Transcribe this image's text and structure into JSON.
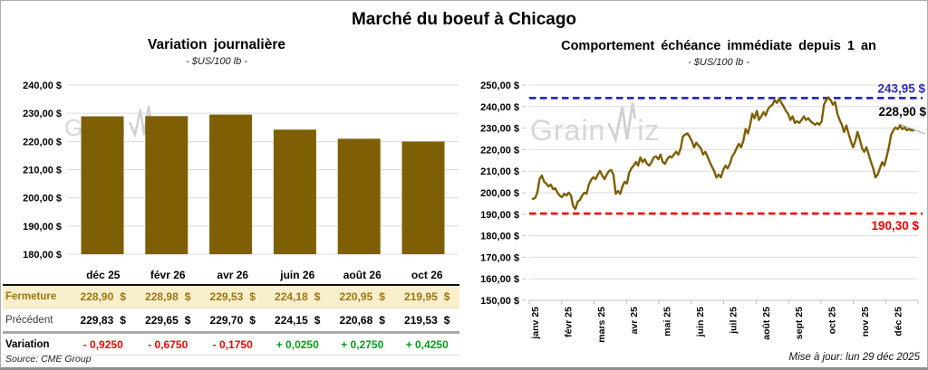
{
  "header": {
    "title": "Marché du boeuf à Chicago"
  },
  "watermark": {
    "full": "GrainWiz",
    "prefix": "Grain",
    "suffix": "iz"
  },
  "colors": {
    "gold": "#7E5F03",
    "grid": "#DCDCDC",
    "close_row_bg": "#F9EFCD",
    "close_row_text": "#9C7614",
    "negative": "#F00505",
    "positive": "#00A01E",
    "resistance_blue": "#2B2BB5",
    "support_red": "#F00000"
  },
  "chart_data": [
    {
      "type": "bar",
      "title": "Variation journalière",
      "subtitle": "- $US/100 lb -",
      "categories": [
        "déc 25",
        "févr 26",
        "avr 26",
        "juin 26",
        "août 26",
        "oct 26"
      ],
      "values": [
        228.9,
        228.98,
        229.53,
        224.18,
        220.95,
        219.95
      ],
      "ylim": [
        180,
        240
      ],
      "ytick_step": 10,
      "ytick_format": "###,00 $",
      "grid": true,
      "legend": "none",
      "bar_color": "#7E5F03",
      "grid_color": "#DCDCDC"
    },
    {
      "type": "line",
      "title": "Comportement échéance immédiate depuis 1 an",
      "subtitle": "- $US/100 lb -",
      "x_tick_labels": [
        "janv 25",
        "févr 25",
        "mars 25",
        "avr 25",
        "mai 25",
        "juin 25",
        "juil 25",
        "août 25",
        "sept 25",
        "oct 25",
        "nov 25",
        "déc 25"
      ],
      "ylim": [
        150,
        250
      ],
      "ytick_step": 10,
      "grid": true,
      "legend": "none",
      "line_color": "#7E5F03",
      "ref_lines": [
        {
          "value": 243.95,
          "label": "243,95 $",
          "color": "#2B2BB5",
          "style": "dashed",
          "position": "above-right"
        },
        {
          "value": 190.3,
          "label": "190,30 $",
          "color": "#F00000",
          "style": "dashed",
          "position": "below-right"
        }
      ],
      "end_label": {
        "text": "228,90 $",
        "color": "#000000"
      },
      "values": [
        197.1,
        197.5,
        200.0,
        206.3,
        208.0,
        205.1,
        204.2,
        202.9,
        203.8,
        201.7,
        202.1,
        200.0,
        198.7,
        197.9,
        199.5,
        198.7,
        200.0,
        198.7,
        193.7,
        192.4,
        195.8,
        196.6,
        198.7,
        200.0,
        199.6,
        203.8,
        205.9,
        207.2,
        206.3,
        208.4,
        210.1,
        207.9,
        206.3,
        208.4,
        210.1,
        210.5,
        208.4,
        199.5,
        200.8,
        199.5,
        202.9,
        205.1,
        204.2,
        209.2,
        211.3,
        212.6,
        214.2,
        212.6,
        216.4,
        214.2,
        215.5,
        213.4,
        212.6,
        214.2,
        216.4,
        216.9,
        215.5,
        217.7,
        214.2,
        213.4,
        215.5,
        216.9,
        216.4,
        217.7,
        219.0,
        217.7,
        220.6,
        226.1,
        227.0,
        227.5,
        226.1,
        224.0,
        221.1,
        223.2,
        221.9,
        220.7,
        217.7,
        219.0,
        216.8,
        214.2,
        212.1,
        210.0,
        207.1,
        208.4,
        207.1,
        210.5,
        212.6,
        211.3,
        213.4,
        216.8,
        218.4,
        220.7,
        222.7,
        221.1,
        224.0,
        229.6,
        227.5,
        231.2,
        236.7,
        234.6,
        238.0,
        233.8,
        235.4,
        237.5,
        235.9,
        238.8,
        240.1,
        240.9,
        243.0,
        241.7,
        243.8,
        241.7,
        240.1,
        238.0,
        236.7,
        233.8,
        235.4,
        232.4,
        233.2,
        232.4,
        233.8,
        235.4,
        233.8,
        234.6,
        233.2,
        232.4,
        231.6,
        232.4,
        231.6,
        233.2,
        240.9,
        243.0,
        244.3,
        243.0,
        240.9,
        242.2,
        236.7,
        233.8,
        231.6,
        228.2,
        231.2,
        227.4,
        224.0,
        221.1,
        224.0,
        228.2,
        224.8,
        220.7,
        219.0,
        221.1,
        217.7,
        214.2,
        211.3,
        207.1,
        208.4,
        211.3,
        214.2,
        212.6,
        216.8,
        221.1,
        226.9,
        229.0,
        230.3,
        229.5,
        231.2,
        229.5,
        230.3,
        229.0,
        229.5,
        229.0,
        228.9
      ]
    },
    {
      "type": "table",
      "columns": [
        "déc 25",
        "févr 26",
        "avr 26",
        "juin 26",
        "août 26",
        "oct 26"
      ],
      "rows": [
        {
          "id": "close",
          "label": "Fermeture",
          "suffix": "$",
          "values": [
            "228,90",
            "228,98",
            "229,53",
            "224,18",
            "220,95",
            "219,95"
          ]
        },
        {
          "id": "previous",
          "label": "Précédent",
          "suffix": "$",
          "values": [
            "229,83",
            "229,65",
            "229,70",
            "224,15",
            "220,68",
            "219,53"
          ]
        },
        {
          "id": "variation",
          "label": "Variation",
          "values": [
            "- 0,9250",
            "- 0,6750",
            "- 0,1750",
            "+ 0,0250",
            "+ 0,2750",
            "+ 0,4250"
          ],
          "value_classes": [
            "neg",
            "neg",
            "neg",
            "pos",
            "pos",
            "pos"
          ]
        }
      ]
    }
  ],
  "footer": {
    "source": "Source: CME Group",
    "updated": "Mise à jour: lun 29 déc 2025"
  }
}
